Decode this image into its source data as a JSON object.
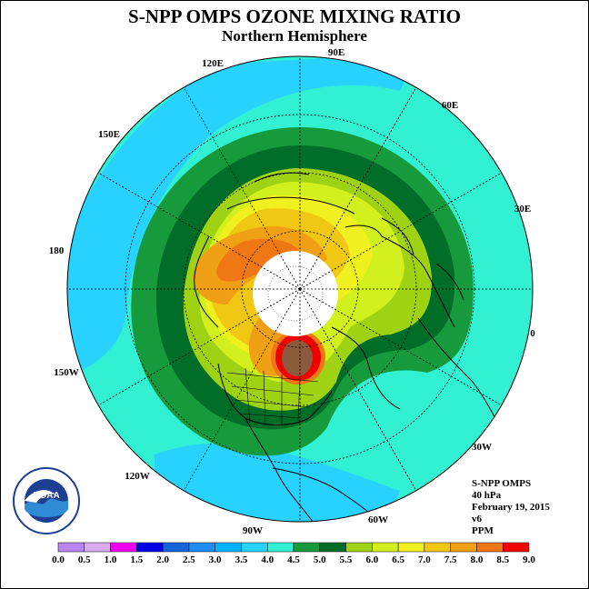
{
  "title": "S-NPP OMPS OZONE MIXING RATIO",
  "subtitle": "Northern Hemisphere",
  "longitude_labels": [
    {
      "text": "90E"
    },
    {
      "text": "60E"
    },
    {
      "text": "30E"
    },
    {
      "text": "0"
    },
    {
      "text": "30W"
    },
    {
      "text": "60W"
    },
    {
      "text": "90W"
    },
    {
      "text": "120W"
    },
    {
      "text": "150W"
    },
    {
      "text": "180"
    },
    {
      "text": "150E"
    },
    {
      "text": "120E"
    }
  ],
  "info": {
    "instrument": "S-NPP OMPS",
    "level": "40 hPa",
    "date": "February 19, 2015",
    "version": "v6",
    "units": "PPM"
  },
  "logo": {
    "text": "NOAA",
    "ring_text": "NATIONAL OCEANIC AND ATMOSPHERIC ADMINISTRATION · U.S. DEPARTMENT OF COMMERCE"
  },
  "colorbar": {
    "ticks": [
      "0.0",
      "0.5",
      "1.0",
      "1.5",
      "2.0",
      "2.5",
      "3.0",
      "3.5",
      "4.0",
      "4.5",
      "5.0",
      "5.5",
      "6.0",
      "6.5",
      "7.0",
      "7.5",
      "8.0",
      "8.5",
      "9.0"
    ],
    "colors": [
      "#b784f0",
      "#dcaaf0",
      "#f000f0",
      "#0000e6",
      "#1464dc",
      "#1e8cf0",
      "#00b4ff",
      "#28d2ff",
      "#32f0d2",
      "#169a3c",
      "#006e28",
      "#a0d214",
      "#d2f01e",
      "#f0f01e",
      "#f0c814",
      "#f0a014",
      "#f07814",
      "#f00000",
      "#8c5a3c"
    ]
  },
  "legend_colors": {
    "pole": "#ffffff",
    "land_lines": "#000000"
  }
}
